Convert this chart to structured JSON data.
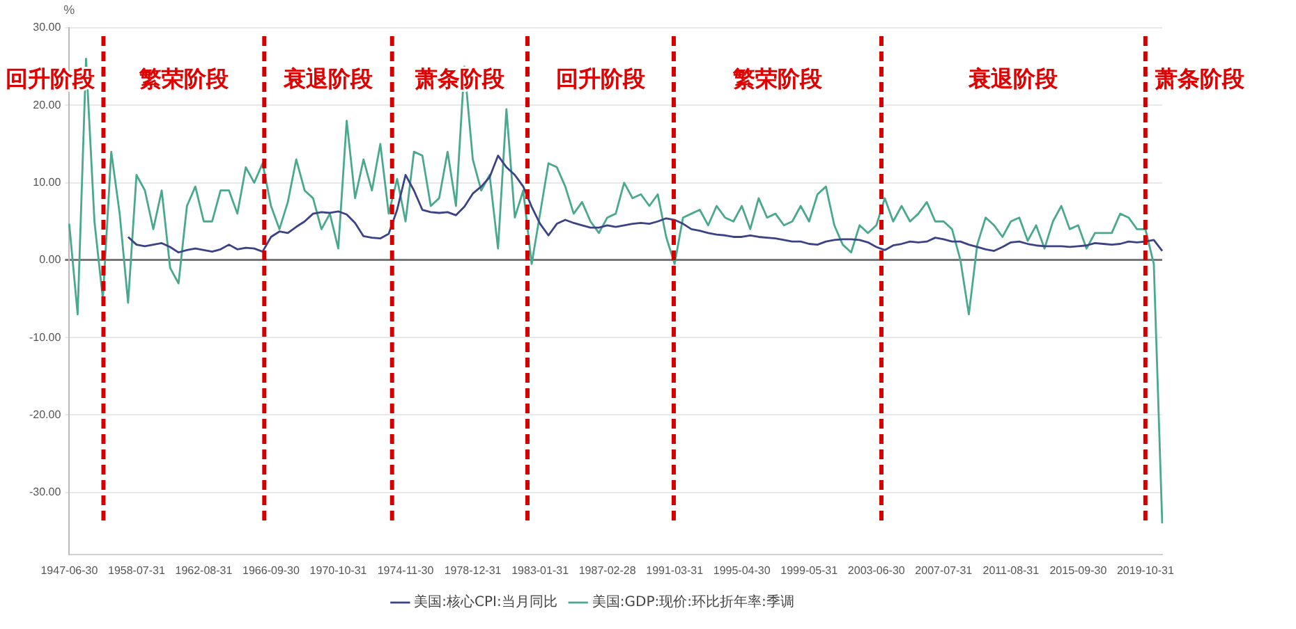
{
  "chart_data": {
    "type": "line",
    "ylabel": "%",
    "categories": [
      "1947-06-30",
      null,
      null,
      null,
      null,
      null,
      null,
      null,
      "1958-07-31",
      null,
      null,
      null,
      null,
      null,
      null,
      null,
      "1962-08-31",
      null,
      null,
      null,
      null,
      null,
      null,
      null,
      "1966-09-30",
      null,
      null,
      null,
      null,
      null,
      null,
      null,
      "1970-10-31",
      null,
      null,
      null,
      null,
      null,
      null,
      null,
      "1974-11-30",
      null,
      null,
      null,
      null,
      null,
      null,
      null,
      "1978-12-31",
      null,
      null,
      null,
      null,
      null,
      null,
      null,
      "1983-01-31",
      null,
      null,
      null,
      null,
      null,
      null,
      null,
      "1987-02-28",
      null,
      null,
      null,
      null,
      null,
      null,
      null,
      "1991-03-31",
      null,
      null,
      null,
      null,
      null,
      null,
      null,
      "1995-04-30",
      null,
      null,
      null,
      null,
      null,
      null,
      null,
      "1999-05-31",
      null,
      null,
      null,
      null,
      null,
      null,
      null,
      "2003-06-30",
      null,
      null,
      null,
      null,
      null,
      null,
      null,
      "2007-07-31",
      null,
      null,
      null,
      null,
      null,
      null,
      null,
      "2011-08-31",
      null,
      null,
      null,
      null,
      null,
      null,
      null,
      "2015-09-30",
      null,
      null,
      null,
      null,
      null,
      null,
      null,
      "2019-10-31",
      null,
      null
    ],
    "series": [
      {
        "name": "美国:核心CPI:当月同比",
        "color": "#3b4285",
        "values": [
          null,
          null,
          null,
          null,
          null,
          null,
          null,
          3,
          2,
          1.8,
          2,
          2.2,
          1.7,
          1,
          1.3,
          1.5,
          1.3,
          1.1,
          1.4,
          2,
          1.4,
          1.6,
          1.5,
          1.1,
          3,
          3.7,
          3.5,
          4.3,
          5,
          6,
          6.2,
          6.1,
          6.3,
          5.9,
          4.8,
          3.1,
          2.9,
          2.8,
          3.4,
          6.5,
          11,
          9,
          6.5,
          6.2,
          6.1,
          6.2,
          5.8,
          6.9,
          8.6,
          9.5,
          10.7,
          13.5,
          12,
          11,
          9.5,
          6.9,
          4.7,
          3.2,
          4.7,
          5.2,
          4.8,
          4.5,
          4.2,
          4.2,
          4.5,
          4.3,
          4.5,
          4.7,
          4.8,
          4.7,
          5,
          5.4,
          5.2,
          4.7,
          4,
          3.8,
          3.5,
          3.3,
          3.2,
          3,
          3,
          3.2,
          3,
          2.9,
          2.8,
          2.6,
          2.4,
          2.4,
          2.1,
          2,
          2.4,
          2.6,
          2.7,
          2.7,
          2.6,
          2.3,
          1.7,
          1.3,
          1.9,
          2.1,
          2.4,
          2.3,
          2.4,
          2.9,
          2.7,
          2.4,
          2.4,
          2,
          1.7,
          1.4,
          1.2,
          1.7,
          2.3,
          2.4,
          2.1,
          1.9,
          1.8,
          1.8,
          1.8,
          1.7,
          1.8,
          1.9,
          2.2,
          2.1,
          2,
          2.1,
          2.4,
          2.3,
          2.4,
          2.6,
          1.2
        ]
      },
      {
        "name": "美国:GDP:现价:环比折年率:季调",
        "color": "#4aa88f",
        "values": [
          4.7,
          -7,
          26,
          5,
          -5,
          14,
          6,
          -5.5,
          11,
          9,
          4,
          9,
          -1,
          -3,
          7,
          9.5,
          5,
          5,
          9,
          9,
          6,
          12,
          10,
          12.5,
          7,
          4,
          7.5,
          13,
          9,
          8,
          4,
          6,
          1.5,
          18,
          8,
          13,
          9,
          15,
          6,
          10.5,
          5,
          14,
          13.5,
          7,
          8,
          14,
          7,
          25,
          13,
          9,
          11,
          1.5,
          19.5,
          5.5,
          9,
          -0.5,
          6,
          12.5,
          12,
          9.5,
          6,
          7.5,
          5,
          3.5,
          5.5,
          6,
          10,
          8,
          8.5,
          7,
          8.5,
          3,
          -0.5,
          5.5,
          6,
          6.5,
          4.5,
          7,
          5.5,
          5,
          7,
          4,
          8,
          5.5,
          6,
          4.5,
          5,
          7,
          5,
          8.5,
          9.5,
          4.5,
          2,
          1,
          4.5,
          3.5,
          4.5,
          8,
          5,
          7,
          5,
          6,
          7.5,
          5,
          5,
          4,
          0,
          -7,
          2,
          5.5,
          4.5,
          3,
          5,
          5.5,
          2.5,
          4.5,
          1.5,
          5,
          7,
          4,
          4.5,
          1.5,
          3.5,
          3.5,
          3.5,
          6,
          5.5,
          4,
          4,
          -0.5,
          -34
        ]
      }
    ],
    "ylim": [
      -38,
      30
    ],
    "yticks": [
      {
        "value": -30,
        "label": "-30.00"
      },
      {
        "value": -20,
        "label": "-20.00"
      },
      {
        "value": -10,
        "label": "-10.00"
      },
      {
        "value": 0,
        "label": "0.00"
      },
      {
        "value": 10,
        "label": "10.00"
      },
      {
        "value": 20,
        "label": "20.00"
      },
      {
        "value": 30,
        "label": "30.00"
      }
    ],
    "grid": "y",
    "legend": "bottom",
    "marker": "none",
    "annotations": [
      "回升阶段",
      "繁荣阶段",
      "衰退阶段",
      "萧条阶段",
      "回升阶段",
      "繁荣阶段",
      "衰退阶段",
      "萧条阶段"
    ]
  }
}
